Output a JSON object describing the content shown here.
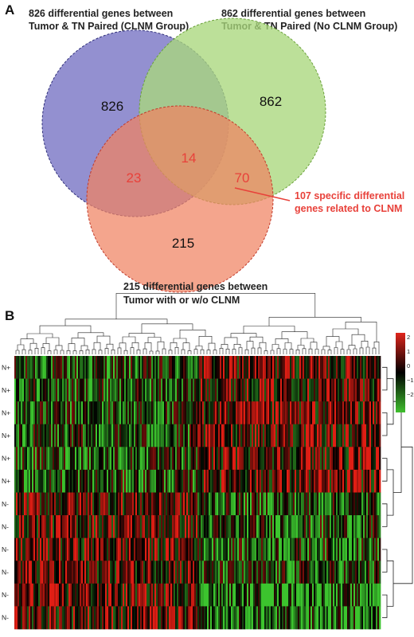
{
  "panel_a": {
    "label": "A",
    "set_clnm": {
      "caption_line1": "826 differential genes between",
      "caption_line2": "Tumor & TN Paired (CLNM Group)",
      "count": "826",
      "color": "#7b78c6"
    },
    "set_no_clnm": {
      "caption_line1": "862 differential genes between",
      "caption_line2": "Tumor & TN Paired (No CLNM Group)",
      "count": "862",
      "color": "#a9d77c"
    },
    "set_tumor": {
      "caption_line1": "215 differential genes between",
      "caption_line2": "Tumor with or w/o CLNM",
      "count": "215",
      "color": "#f08261"
    },
    "overlaps": {
      "all_three": "14",
      "clnm_and_tumor": "23",
      "no_clnm_and_tumor": "70"
    },
    "callout_line1": "107 specific differential",
    "callout_line2": "genes related to CLNM"
  },
  "panel_b": {
    "label": "B",
    "row_labels": [
      "N+",
      "N+",
      "N+",
      "N+",
      "N+",
      "N+",
      "N-",
      "N-",
      "N-",
      "N-",
      "N-",
      "N-"
    ],
    "color_scale": {
      "ticks": [
        "2",
        "1",
        "0",
        "−1",
        "−2"
      ],
      "high_color": "#e0251c",
      "mid_color": "#000000",
      "low_color": "#3fbf2e"
    }
  }
}
